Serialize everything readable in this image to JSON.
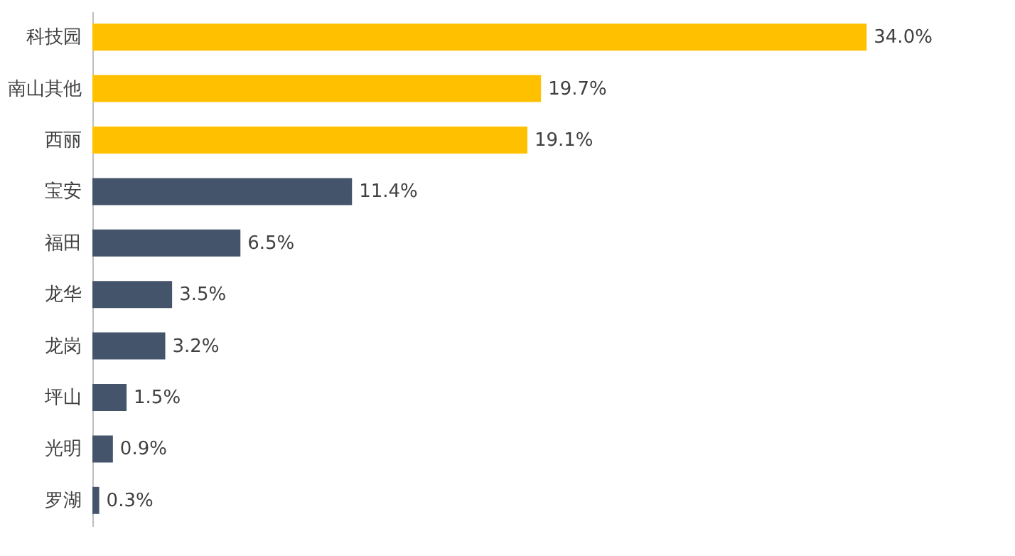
{
  "chart_data": {
    "type": "bar",
    "orientation": "horizontal",
    "categories": [
      "科技园",
      "南山其他",
      "西丽",
      "宝安",
      "福田",
      "龙华",
      "龙岗",
      "坪山",
      "光明",
      "罗湖"
    ],
    "values": [
      34.0,
      19.7,
      19.1,
      11.4,
      6.5,
      3.5,
      3.2,
      1.5,
      0.9,
      0.3
    ],
    "colors": [
      "#ffc000",
      "#ffc000",
      "#ffc000",
      "#44546a",
      "#44546a",
      "#44546a",
      "#44546a",
      "#44546a",
      "#44546a",
      "#44546a"
    ],
    "value_labels": [
      "34.0%",
      "19.7%",
      "19.1%",
      "11.4%",
      "6.5%",
      "3.5%",
      "3.2%",
      "1.5%",
      "0.9%",
      "0.3%"
    ],
    "tick_labels": "y",
    "grid": false
  }
}
